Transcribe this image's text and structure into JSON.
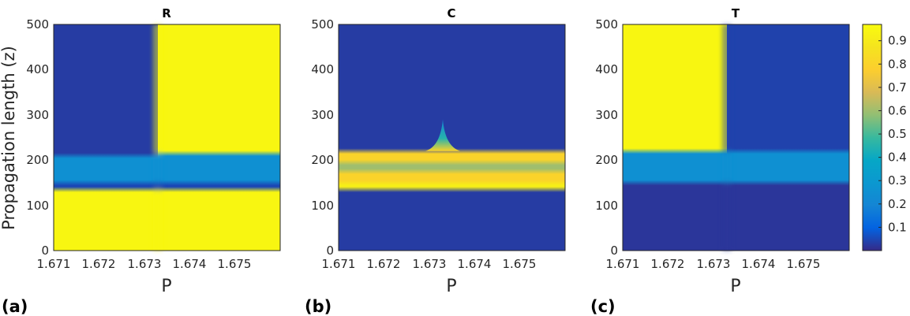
{
  "chart_data": [
    {
      "type": "heatmap",
      "title": "R",
      "panel_label": "(a)",
      "xlabel": "P",
      "ylabel": "Propagation length (z)",
      "xlim": [
        1.671,
        1.676
      ],
      "ylim": [
        0,
        500
      ],
      "xticks": [
        "1.671",
        "1.672",
        "1.673",
        "1.674",
        "1.675"
      ],
      "yticks": [
        "0",
        "100",
        "200",
        "300",
        "400",
        "500"
      ],
      "transition_p": 1.6733,
      "bands_z_left": [
        {
          "z": [
            0,
            135
          ],
          "value": 0.95
        },
        {
          "z": [
            135,
            150
          ],
          "value": 0.05
        },
        {
          "z": [
            150,
            210
          ],
          "value": 0.25
        },
        {
          "z": [
            210,
            500
          ],
          "value": 0.03
        }
      ],
      "bands_z_right": [
        {
          "z": [
            0,
            135
          ],
          "value": 0.95
        },
        {
          "z": [
            135,
            150
          ],
          "value": 0.05
        },
        {
          "z": [
            150,
            215
          ],
          "value": 0.25
        },
        {
          "z": [
            215,
            500
          ],
          "value": 0.95
        }
      ]
    },
    {
      "type": "heatmap",
      "title": "C",
      "panel_label": "(b)",
      "xlabel": "P",
      "ylabel": "",
      "xlim": [
        1.671,
        1.676
      ],
      "ylim": [
        0,
        500
      ],
      "xticks": [
        "1.671",
        "1.672",
        "1.673",
        "1.674",
        "1.675"
      ],
      "yticks": [
        "0",
        "100",
        "200",
        "300",
        "400",
        "500"
      ],
      "bands_z": [
        {
          "z": [
            0,
            135
          ],
          "value": 0.03
        },
        {
          "z": [
            135,
            150
          ],
          "value": 0.92
        },
        {
          "z": [
            150,
            175
          ],
          "value": 0.8
        },
        {
          "z": [
            175,
            195
          ],
          "value": 0.6
        },
        {
          "z": [
            195,
            220
          ],
          "value": 0.8
        },
        {
          "z": [
            220,
            500
          ],
          "value": 0.03
        }
      ],
      "peak": {
        "p": 1.6733,
        "z": 290
      }
    },
    {
      "type": "heatmap",
      "title": "T",
      "panel_label": "(c)",
      "xlabel": "P",
      "ylabel": "",
      "xlim": [
        1.671,
        1.676
      ],
      "ylim": [
        0,
        500
      ],
      "xticks": [
        "1.671",
        "1.672",
        "1.673",
        "1.674",
        "1.675"
      ],
      "yticks": [
        "0",
        "100",
        "200",
        "300",
        "400",
        "500"
      ],
      "transition_p": 1.6733,
      "bands_z_left": [
        {
          "z": [
            0,
            150
          ],
          "value": 0.02
        },
        {
          "z": [
            150,
            220
          ],
          "value": 0.25
        },
        {
          "z": [
            220,
            500
          ],
          "value": 0.95
        }
      ],
      "bands_z_right": [
        {
          "z": [
            0,
            150
          ],
          "value": 0.02
        },
        {
          "z": [
            150,
            220
          ],
          "value": 0.25
        },
        {
          "z": [
            220,
            500
          ],
          "value": 0.04
        }
      ]
    }
  ],
  "colorbar": {
    "colormap": "parula",
    "range": [
      0,
      0.97
    ],
    "ticks": [
      "0.1",
      "0.2",
      "0.3",
      "0.4",
      "0.5",
      "0.6",
      "0.7",
      "0.8",
      "0.9"
    ],
    "tick_values": [
      0.1,
      0.2,
      0.3,
      0.4,
      0.5,
      0.6,
      0.7,
      0.8,
      0.9
    ]
  },
  "colors": {
    "low": "#352a87",
    "mid": "#0f5cdd",
    "cyan": "#1ab2c9",
    "green": "#8cbd5e",
    "orange": "#f8ba43",
    "high": "#f9fb0e"
  }
}
